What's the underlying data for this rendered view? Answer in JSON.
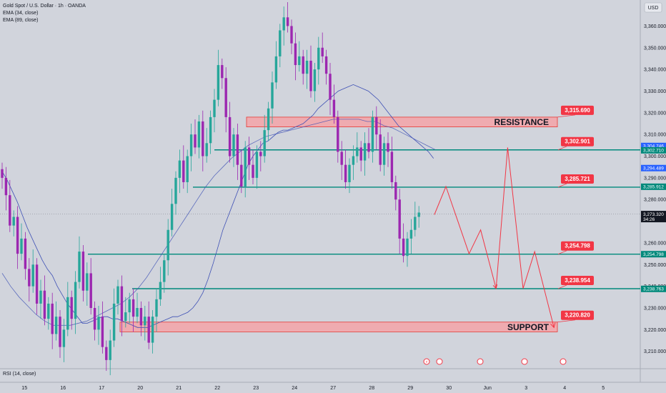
{
  "header": {
    "symbol_title": "Gold Spot / U.S. Dollar · 1h · OANDA",
    "indicator_1": "EMA (34, close)",
    "indicator_2": "EMA (89, close)",
    "currency": "USD"
  },
  "rsi_label": "RSI (14, close)",
  "colors": {
    "background": "#d1d4dc",
    "up_candle": "#26a69a",
    "down_candle": "#9c27b0",
    "ema": "#3f51b5",
    "level_line": "#00897b",
    "zone_fill": "#f4a3a8",
    "zone_stroke": "#e53935",
    "label_red": "#f23645",
    "arrow_red": "#f23645",
    "current_price_tag": "#131722",
    "blue_tag": "#2962ff"
  },
  "chart_data": {
    "type": "candlestick",
    "title": "Gold Spot / U.S. Dollar · 1h · OANDA",
    "y_axis": {
      "ylim": [
        3202,
        3372
      ],
      "ticks": [
        "3,360.000",
        "3,350.000",
        "3,340.000",
        "3,330.000",
        "3,320.000",
        "3,310.000",
        "3,300.000",
        "3,290.000",
        "3,280.000",
        "3,260.000",
        "3,250.000",
        "3,240.000",
        "3,230.000",
        "3,220.000",
        "3,210.000"
      ],
      "tick_values": [
        3360,
        3350,
        3340,
        3330,
        3320,
        3310,
        3300,
        3290,
        3280,
        3260,
        3250,
        3240,
        3230,
        3220,
        3210
      ]
    },
    "x_axis": {
      "ticks": [
        "15",
        "16",
        "17",
        "20",
        "21",
        "22",
        "23",
        "24",
        "27",
        "28",
        "29",
        "30",
        "Jun",
        "3",
        "4",
        "5"
      ],
      "tick_index": [
        8,
        18,
        28,
        38,
        48,
        58,
        68,
        78,
        88,
        98,
        108,
        118,
        128,
        138,
        148,
        158
      ]
    },
    "closes": [
      3290,
      3282,
      3268,
      3272,
      3255,
      3262,
      3248,
      3240,
      3250,
      3232,
      3238,
      3225,
      3232,
      3218,
      3226,
      3212,
      3220,
      3235,
      3225,
      3242,
      3256,
      3238,
      3246,
      3230,
      3220,
      3226,
      3212,
      3206,
      3215,
      3232,
      3240,
      3224,
      3228,
      3234,
      3226,
      3230,
      3222,
      3226,
      3214,
      3226,
      3234,
      3242,
      3252,
      3266,
      3278,
      3290,
      3298,
      3288,
      3300,
      3310,
      3304,
      3316,
      3300,
      3306,
      3318,
      3326,
      3342,
      3336,
      3318,
      3300,
      3310,
      3296,
      3286,
      3304,
      3296,
      3290,
      3302,
      3300,
      3312,
      3322,
      3334,
      3346,
      3358,
      3364,
      3360,
      3352,
      3342,
      3346,
      3338,
      3344,
      3330,
      3340,
      3350,
      3346,
      3338,
      3326,
      3318,
      3302,
      3296,
      3288,
      3296,
      3300,
      3304,
      3298,
      3306,
      3302,
      3318,
      3310,
      3296,
      3306,
      3302,
      3288,
      3280,
      3262,
      3254,
      3262,
      3266,
      3272,
      3274
    ],
    "ema34": [
      3293,
      3289,
      3284,
      3279,
      3273,
      3267,
      3262,
      3257,
      3252,
      3248,
      3245,
      3240,
      3236,
      3232,
      3229,
      3226,
      3223,
      3223,
      3224,
      3225,
      3226,
      3226,
      3225,
      3225,
      3224,
      3223,
      3222,
      3221,
      3221,
      3221,
      3222,
      3223,
      3224,
      3225,
      3226,
      3226,
      3227,
      3228,
      3230,
      3233,
      3237,
      3243,
      3250,
      3258,
      3266,
      3272,
      3278,
      3284,
      3290,
      3296,
      3300,
      3303,
      3306,
      3307,
      3309,
      3311,
      3312,
      3312,
      3313,
      3314,
      3315,
      3317,
      3319,
      3322,
      3324,
      3326,
      3328,
      3330,
      3331,
      3332,
      3333,
      3332,
      3331,
      3330,
      3328,
      3326,
      3323,
      3320,
      3317,
      3314,
      3312,
      3310,
      3308,
      3306,
      3304,
      3302,
      3299
    ],
    "ema89": [
      3246,
      3240,
      3235,
      3231,
      3227,
      3224,
      3222,
      3222,
      3222,
      3223,
      3224,
      3226,
      3228,
      3230,
      3232,
      3235,
      3239,
      3244,
      3250,
      3256,
      3262,
      3268,
      3274,
      3280,
      3286,
      3291,
      3295,
      3299,
      3302,
      3305,
      3307,
      3309,
      3310,
      3311,
      3312,
      3313,
      3314,
      3315,
      3316,
      3317,
      3317,
      3317,
      3317,
      3316,
      3316,
      3314,
      3313,
      3311,
      3309,
      3307,
      3305,
      3303
    ],
    "levels": [
      {
        "label": "3,302.901",
        "price": 3302.9
      },
      {
        "label": "3,285.721",
        "price": 3285.7
      },
      {
        "label": "3,254.798",
        "price": 3254.8
      },
      {
        "label": "3,238.954",
        "price": 3238.9
      }
    ],
    "zones": [
      {
        "text": "RESISTANCE",
        "label": "3,315.690",
        "top": 3318.0,
        "bottom": 3313.5
      },
      {
        "text": "SUPPORT",
        "label": "3,220.820",
        "top": 3223.5,
        "bottom": 3219.0
      }
    ],
    "price_tags": [
      {
        "text": "3,304.746",
        "price": 3304.7,
        "kind": "blue"
      },
      {
        "text": "3,302.710",
        "price": 3302.7,
        "kind": "green"
      },
      {
        "text": "3,294.489",
        "price": 3294.5,
        "kind": "blue"
      },
      {
        "text": "3,285.912",
        "price": 3285.9,
        "kind": "green"
      },
      {
        "text": "3,273.320",
        "sub": "34:26",
        "price": 3273.3,
        "kind": "dark"
      },
      {
        "text": "3,254.798",
        "price": 3254.8,
        "kind": "green"
      },
      {
        "text": "3,238.763",
        "price": 3238.8,
        "kind": "green"
      }
    ],
    "projection_path": [
      {
        "i": 112,
        "p": 3273
      },
      {
        "i": 115,
        "p": 3286
      },
      {
        "i": 121,
        "p": 3255
      },
      {
        "i": 124,
        "p": 3266
      },
      {
        "i": 128,
        "p": 3239
      },
      {
        "i": 131,
        "p": 3304
      },
      {
        "i": 135,
        "p": 3239
      },
      {
        "i": 138,
        "p": 3256
      },
      {
        "i": 143,
        "p": 3221
      }
    ],
    "legend": "top-left",
    "grid": false
  }
}
